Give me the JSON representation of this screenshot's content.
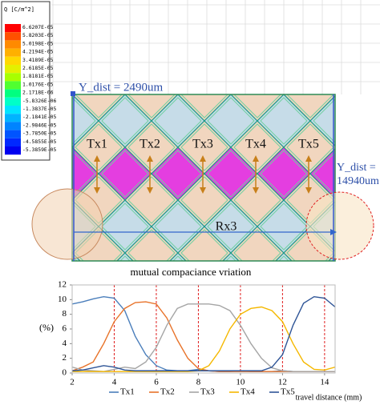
{
  "legend": {
    "title": "Q [C/m^2]",
    "labels": [
      "6.6207E-05",
      "5.8203E-05",
      "5.0198E-05",
      "4.2194E-05",
      "3.4189E-05",
      "2.6185E-05",
      "1.8181E-05",
      "1.0176E-05",
      "2.1718E-06",
      "-5.8326E-06",
      "-1.3837E-05",
      "-2.1841E-05",
      "-2.9846E-05",
      "-3.7850E-05",
      "-4.5855E-05",
      "-5.3859E-05"
    ]
  },
  "diagram": {
    "y_dist_top": "Y_dist = 2490um",
    "tx_labels": [
      "Tx1",
      "Tx2",
      "Tx3",
      "Tx4",
      "Tx5"
    ],
    "y_dist_right": [
      "Y_dist =",
      "14940um"
    ],
    "rx_label": "Rx3"
  },
  "chart_data": {
    "type": "line",
    "title": "mutual compaciance vriation",
    "x_label": "travel distance (mm)",
    "y_label": "(%)",
    "x": [
      2,
      2.5,
      3,
      3.5,
      4,
      4.5,
      5,
      5.5,
      6,
      6.5,
      7,
      7.5,
      8,
      8.5,
      9,
      9.5,
      10,
      10.5,
      11,
      11.5,
      12,
      12.5,
      13,
      13.5,
      14,
      14.5
    ],
    "series": [
      {
        "name": "Tx1",
        "color": "#4a7ebb",
        "values": [
          9.4,
          9.7,
          10.1,
          10.4,
          10.2,
          8.5,
          5,
          2.5,
          1,
          0.4,
          0.3,
          0.3,
          0.5,
          0.3,
          0.2,
          0.2,
          0.3,
          0.2,
          0.2,
          0.2,
          0.3,
          0.2,
          0.2,
          0.2,
          0.2,
          0.2
        ]
      },
      {
        "name": "Tx2",
        "color": "#e8732a",
        "values": [
          0.3,
          0.8,
          1.5,
          4,
          7,
          8.8,
          9.6,
          9.7,
          9.4,
          7.5,
          4.5,
          2,
          0.6,
          0.3,
          0.2,
          0.2,
          0.2,
          0.2,
          0.2,
          0.2,
          0.2,
          0.2,
          0.2,
          0.2,
          0.2,
          0.2
        ]
      },
      {
        "name": "Tx3",
        "color": "#a5a5a5",
        "values": [
          0.8,
          0.4,
          0.3,
          0.2,
          0.5,
          0.8,
          0.6,
          1.5,
          3.5,
          6.5,
          8.8,
          9.4,
          9.4,
          9.4,
          9.2,
          8.5,
          6.5,
          4,
          2,
          0.7,
          0.3,
          0.2,
          0.2,
          0.2,
          0.2,
          0.2
        ]
      },
      {
        "name": "Tx4",
        "color": "#f5b800",
        "values": [
          0.2,
          0.2,
          0.2,
          0.2,
          0.2,
          0.2,
          0.2,
          0.2,
          0.2,
          0.2,
          0.2,
          0.2,
          0.3,
          1,
          3,
          6,
          8,
          8.8,
          9,
          8.5,
          7,
          4,
          1.5,
          0.5,
          0.4,
          0.8
        ]
      },
      {
        "name": "Tx5",
        "color": "#2f5597",
        "values": [
          0.3,
          0.4,
          0.7,
          1,
          0.8,
          0.4,
          0.3,
          0.3,
          0.3,
          0.3,
          0.3,
          0.3,
          0.3,
          0.3,
          0.3,
          0.3,
          0.3,
          0.3,
          0.3,
          0.8,
          2.5,
          6.5,
          9.5,
          10.4,
          10.2,
          9
        ]
      }
    ],
    "xlim": [
      2,
      14.5
    ],
    "ylim": [
      0,
      12
    ],
    "xticks": [
      2,
      4,
      6,
      8,
      10,
      12,
      14
    ],
    "yticks": [
      0,
      2,
      4,
      6,
      8,
      10,
      12
    ],
    "vlines": [
      4,
      6,
      8,
      10,
      12,
      14
    ],
    "vline_color": "#e02020"
  }
}
